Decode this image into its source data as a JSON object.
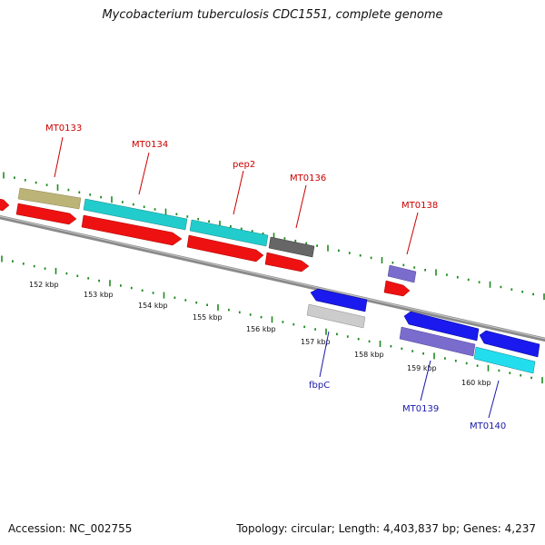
{
  "title": "Mycobacterium tuberculosis CDC1551, complete genome",
  "footer": {
    "accession": "Accession: NC_002755",
    "summary": "Topology: circular; Length: 4,403,837 bp; Genes: 4,237"
  },
  "colors": {
    "backbone": "#8a8a8a",
    "ticks": "#1e8a1e",
    "forward_label": "#cc0000",
    "reverse_label": "#1a1aaa",
    "red": "#ee1111",
    "cyan": "#22cccc",
    "olive": "#bcb477",
    "gray": "#666666",
    "blue": "#1a1aee",
    "light_gray": "#cccccc",
    "purple": "#7a6ccc"
  },
  "scale_labels": [
    "152 kbp",
    "153 kbp",
    "154 kbp",
    "155 kbp",
    "156 kbp",
    "157 kbp",
    "158 kbp",
    "159 kbp",
    "160 kbp"
  ],
  "gene_labels": [
    {
      "text": "MT0133",
      "strand": "forward"
    },
    {
      "text": "MT0134",
      "strand": "forward"
    },
    {
      "text": "pep2",
      "strand": "forward"
    },
    {
      "text": "MT0136",
      "strand": "forward"
    },
    {
      "text": "MT0138",
      "strand": "forward"
    },
    {
      "text": "fbpC",
      "strand": "reverse"
    },
    {
      "text": "MT0139",
      "strand": "reverse"
    },
    {
      "text": "MT0140",
      "strand": "reverse"
    }
  ]
}
